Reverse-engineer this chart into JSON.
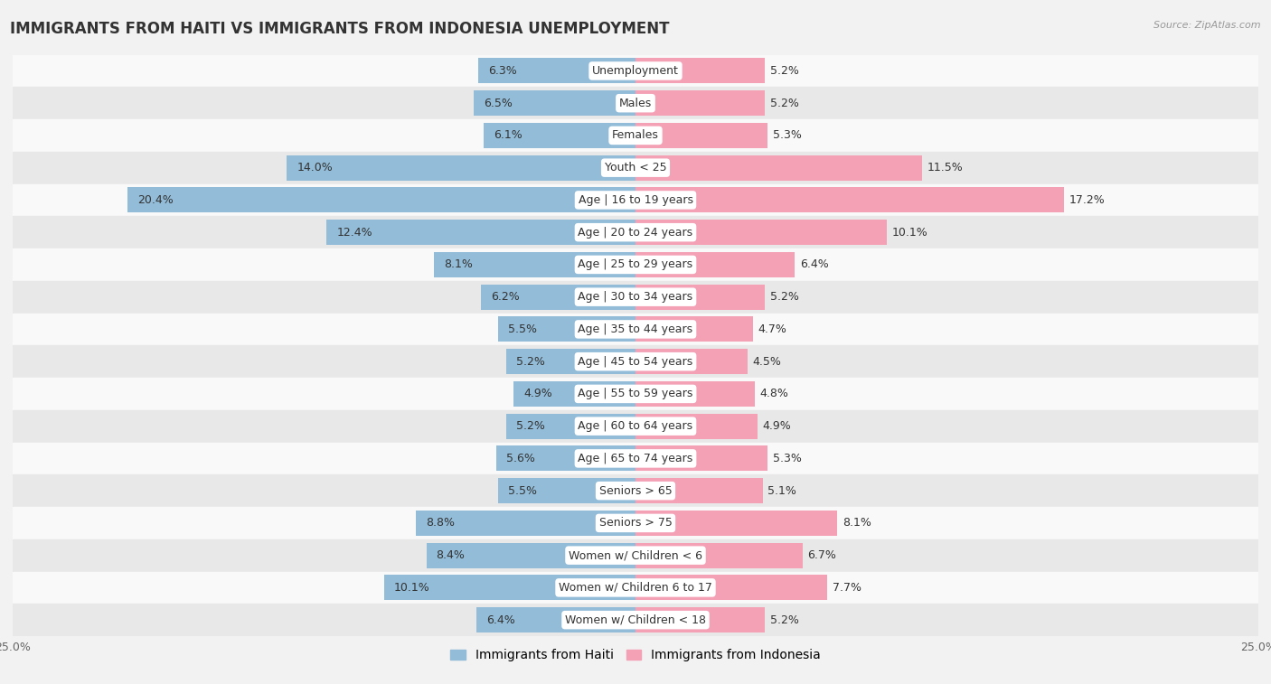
{
  "title": "IMMIGRANTS FROM HAITI VS IMMIGRANTS FROM INDONESIA UNEMPLOYMENT",
  "source": "Source: ZipAtlas.com",
  "categories": [
    "Unemployment",
    "Males",
    "Females",
    "Youth < 25",
    "Age | 16 to 19 years",
    "Age | 20 to 24 years",
    "Age | 25 to 29 years",
    "Age | 30 to 34 years",
    "Age | 35 to 44 years",
    "Age | 45 to 54 years",
    "Age | 55 to 59 years",
    "Age | 60 to 64 years",
    "Age | 65 to 74 years",
    "Seniors > 65",
    "Seniors > 75",
    "Women w/ Children < 6",
    "Women w/ Children 6 to 17",
    "Women w/ Children < 18"
  ],
  "haiti_values": [
    6.3,
    6.5,
    6.1,
    14.0,
    20.4,
    12.4,
    8.1,
    6.2,
    5.5,
    5.2,
    4.9,
    5.2,
    5.6,
    5.5,
    8.8,
    8.4,
    10.1,
    6.4
  ],
  "indonesia_values": [
    5.2,
    5.2,
    5.3,
    11.5,
    17.2,
    10.1,
    6.4,
    5.2,
    4.7,
    4.5,
    4.8,
    4.9,
    5.3,
    5.1,
    8.1,
    6.7,
    7.7,
    5.2
  ],
  "haiti_color": "#92bcd8",
  "indonesia_color": "#f4a0b5",
  "background_color": "#f2f2f2",
  "row_bg_light": "#f9f9f9",
  "row_bg_dark": "#e8e8e8",
  "xlim": 25.0,
  "bar_height": 0.78,
  "title_fontsize": 12,
  "label_fontsize": 9,
  "value_fontsize": 9,
  "tick_fontsize": 9,
  "legend_fontsize": 10
}
